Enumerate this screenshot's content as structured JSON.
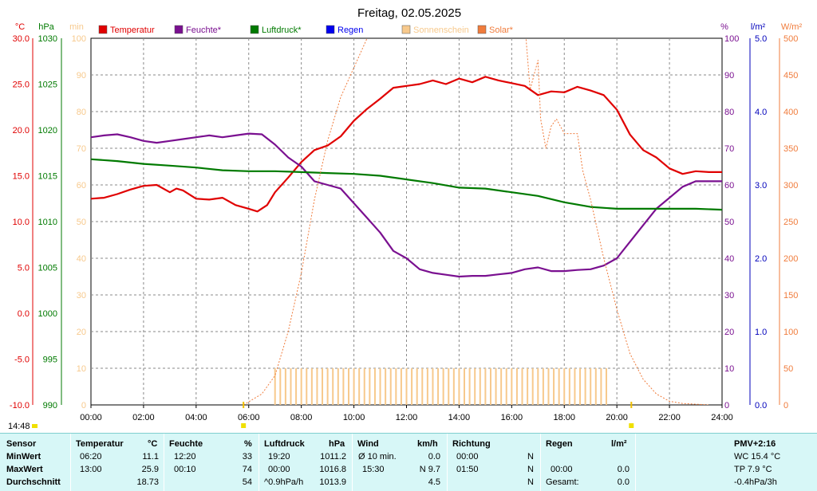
{
  "chart_data": {
    "type": "line",
    "title": "Freitag, 02.05.2025",
    "axis_units": {
      "temp": "°C",
      "pressure": "hPa",
      "sun": "min",
      "humidity": "%",
      "rain": "l/m²",
      "solar": "W/m²"
    },
    "legend": [
      {
        "name": "Temperatur",
        "color": "#e00000",
        "type": "box"
      },
      {
        "name": "Feuchte*",
        "color": "#7a1090",
        "type": "box"
      },
      {
        "name": "Luftdruck*",
        "color": "#007a00",
        "type": "box"
      },
      {
        "name": "Regen",
        "color": "#0000ee",
        "type": "box"
      },
      {
        "name": "Sonnenschein",
        "color": "#f7c98c",
        "type": "box"
      },
      {
        "name": "Solar*",
        "color": "#f07c3c",
        "type": "box"
      }
    ],
    "x_ticks": [
      "00:00",
      "02:00",
      "04:00",
      "06:00",
      "08:00",
      "10:00",
      "12:00",
      "14:00",
      "16:00",
      "18:00",
      "20:00",
      "22:00",
      "24:00"
    ],
    "x_range_hours": [
      0,
      24
    ],
    "temp_ticks": [
      "30.0",
      "25.0",
      "20.0",
      "15.0",
      "10.0",
      "5.0",
      "0.0",
      "-5.0",
      "-10.0"
    ],
    "temp_range": [
      -10,
      30
    ],
    "pressure_ticks": [
      "1030",
      "1025",
      "1020",
      "1015",
      "1010",
      "1005",
      "1000",
      "995",
      "990"
    ],
    "pressure_range": [
      990,
      1030
    ],
    "sun_ticks": [
      "100",
      "90",
      "80",
      "70",
      "60",
      "50",
      "40",
      "30",
      "20",
      "10",
      "0"
    ],
    "sun_range": [
      0,
      100
    ],
    "humidity_ticks": [
      "100",
      "90",
      "80",
      "70",
      "60",
      "50",
      "40",
      "30",
      "20",
      "10",
      "0"
    ],
    "humidity_range": [
      0,
      100
    ],
    "rain_ticks": [
      "5.0",
      "4.0",
      "3.0",
      "2.0",
      "1.0",
      "0.0"
    ],
    "rain_range": [
      0,
      5
    ],
    "solar_ticks": [
      "500",
      "450",
      "400",
      "350",
      "300",
      "250",
      "200",
      "150",
      "100",
      "50",
      "0"
    ],
    "solar_range": [
      0,
      500
    ],
    "sunrise_label": "14:48",
    "series": [
      {
        "name": "Temperatur",
        "axis": "temp",
        "color": "#e00000",
        "x": [
          0,
          0.5,
          1,
          1.5,
          2,
          2.5,
          3,
          3.25,
          3.5,
          4,
          4.5,
          5,
          5.5,
          6,
          6.33,
          6.7,
          7,
          7.5,
          8,
          8.5,
          9,
          9.5,
          10,
          10.5,
          11,
          11.5,
          12,
          12.5,
          13,
          13.5,
          14,
          14.5,
          15,
          15.5,
          16,
          16.5,
          17,
          17.5,
          18,
          18.5,
          19,
          19.5,
          20,
          20.5,
          21,
          21.5,
          22,
          22.5,
          23,
          23.5,
          24
        ],
        "y": [
          12.5,
          12.6,
          13.0,
          13.5,
          13.9,
          14.0,
          13.2,
          13.6,
          13.4,
          12.5,
          12.4,
          12.6,
          11.8,
          11.4,
          11.1,
          11.8,
          13.2,
          14.8,
          16.5,
          17.8,
          18.3,
          19.3,
          21.0,
          22.3,
          23.4,
          24.6,
          24.8,
          25.0,
          25.4,
          25.0,
          25.6,
          25.2,
          25.8,
          25.4,
          25.1,
          24.8,
          23.8,
          24.2,
          24.1,
          24.7,
          24.3,
          23.8,
          22.2,
          19.5,
          17.8,
          17.0,
          15.8,
          15.2,
          15.5,
          15.4,
          15.4
        ]
      },
      {
        "name": "Feuchte*",
        "axis": "humidity",
        "color": "#7a1090",
        "x": [
          0,
          0.5,
          1,
          1.5,
          2,
          2.5,
          3,
          3.5,
          4,
          4.5,
          5,
          5.5,
          6,
          6.5,
          7,
          7.5,
          8,
          8.5,
          9,
          9.5,
          10,
          10.5,
          11,
          11.5,
          12,
          12.5,
          13,
          13.5,
          14,
          14.5,
          15,
          15.5,
          16,
          16.5,
          17,
          17.5,
          18,
          18.5,
          19,
          19.5,
          20,
          20.5,
          21,
          21.5,
          22,
          22.5,
          23,
          23.5,
          24
        ],
        "y": [
          73,
          73.5,
          73.8,
          73,
          72,
          71.5,
          72,
          72.5,
          73,
          73.5,
          73,
          73.5,
          74,
          73.8,
          71,
          67.5,
          65,
          61,
          60,
          59,
          55,
          51,
          47,
          42,
          40,
          37,
          36,
          35.5,
          35,
          35.2,
          35.2,
          35.6,
          36,
          37,
          37.5,
          36.5,
          36.5,
          36.8,
          37,
          38,
          40,
          44.5,
          49,
          53.5,
          56.5,
          59.5,
          61,
          61,
          61
        ]
      },
      {
        "name": "Luftdruck*",
        "axis": "pressure",
        "color": "#007a00",
        "x": [
          0,
          1,
          2,
          3,
          4,
          5,
          6,
          7,
          8,
          9,
          10,
          11,
          12,
          13,
          14,
          15,
          16,
          17,
          18,
          19,
          20,
          21,
          22,
          23,
          24
        ],
        "y": [
          1016.8,
          1016.6,
          1016.3,
          1016.1,
          1015.9,
          1015.6,
          1015.5,
          1015.5,
          1015.4,
          1015.3,
          1015.2,
          1015.0,
          1014.6,
          1014.2,
          1013.7,
          1013.6,
          1013.2,
          1012.8,
          1012.1,
          1011.6,
          1011.4,
          1011.4,
          1011.4,
          1011.4,
          1011.3
        ]
      },
      {
        "name": "Solar*",
        "axis": "solar",
        "color": "#f07c3c",
        "x": [
          5.8,
          6.5,
          7,
          7.5,
          8,
          8.5,
          9,
          9.5,
          10,
          10.5,
          10.8,
          16.5,
          16.7,
          17,
          17.1,
          17.3,
          17.5,
          17.7,
          18,
          18.5,
          18.7,
          19,
          19.5,
          20,
          20.5,
          21,
          21.5,
          22,
          22.5,
          23,
          23.5
        ],
        "y": [
          0,
          15,
          40,
          100,
          180,
          280,
          360,
          420,
          460,
          500,
          520,
          520,
          430,
          470,
          390,
          350,
          380,
          390,
          370,
          370,
          320,
          280,
          200,
          130,
          70,
          35,
          15,
          5,
          2,
          1,
          0
        ]
      },
      {
        "name": "Sonnenschein",
        "axis": "sun",
        "color": "#f7c98c",
        "style": "bars",
        "x": [
          7.0,
          7.2,
          7.4,
          7.6,
          7.8,
          8.0,
          8.2,
          8.4,
          8.6,
          8.8,
          9.0,
          9.2,
          9.4,
          9.6,
          9.8,
          10.0,
          10.2,
          10.4,
          10.6,
          10.8,
          11.0,
          11.2,
          11.4,
          11.6,
          11.8,
          12.0,
          12.2,
          12.4,
          12.6,
          12.8,
          13.0,
          13.2,
          13.4,
          13.6,
          13.8,
          14.0,
          14.2,
          14.4,
          14.6,
          14.8,
          15.0,
          15.2,
          15.4,
          15.6,
          15.8,
          16.0,
          16.2,
          16.4,
          16.6,
          16.8,
          17.0,
          17.2,
          17.4,
          17.6,
          17.8,
          18.0,
          18.2,
          18.4,
          18.6,
          18.8,
          19.0,
          19.2,
          19.4,
          19.6
        ],
        "y": [
          10,
          10,
          10,
          10,
          10,
          10,
          10,
          10,
          10,
          10,
          10,
          10,
          10,
          10,
          10,
          10,
          10,
          10,
          10,
          10,
          10,
          10,
          10,
          10,
          10,
          10,
          10,
          10,
          10,
          10,
          10,
          10,
          10,
          10,
          10,
          10,
          10,
          10,
          10,
          10,
          10,
          10,
          10,
          10,
          10,
          10,
          10,
          10,
          10,
          10,
          10,
          10,
          10,
          10,
          10,
          10,
          10,
          10,
          10,
          10,
          10,
          10,
          10,
          10
        ]
      }
    ]
  },
  "stats": {
    "headers": {
      "sensor": "Sensor",
      "temperatur": "Temperatur",
      "temp_unit": "°C",
      "feuchte": "Feuchte",
      "feuchte_unit": "%",
      "luftdruck": "Luftdruck",
      "luftdruck_unit": "hPa",
      "wind": "Wind",
      "wind_unit": "km/h",
      "richtung": "Richtung",
      "regen": "Regen",
      "regen_unit": "l/m²",
      "pmv": "PMV+2:16"
    },
    "row_labels": [
      "MinWert",
      "MaxWert",
      "Durchschnitt"
    ],
    "temp_time": [
      "06:20",
      "13:00",
      ""
    ],
    "temp_val": [
      "11.1",
      "25.9",
      "18.73"
    ],
    "feuchte_time": [
      "12:20",
      "00:10",
      ""
    ],
    "feuchte_val": [
      "33",
      "74",
      "54"
    ],
    "druck_time": [
      "19:20",
      "00:00",
      "^0.9hPa/h"
    ],
    "druck_val": [
      "1011.2",
      "1016.8",
      "1013.9"
    ],
    "wind_label": [
      "Ø 10 min.",
      "15:30",
      ""
    ],
    "wind_val": [
      "0.0",
      "N 9.7",
      "4.5"
    ],
    "richtung_time": [
      "00:00",
      "01:50",
      ""
    ],
    "richtung_dir": [
      "N",
      "N",
      "N"
    ],
    "regen_label": [
      "",
      "00:00",
      "Gesamt:"
    ],
    "regen_val": [
      "",
      "0.0",
      "0.0"
    ],
    "pmv_lines": [
      "WC 15.4 °C",
      "TP 7.9 °C",
      "-0.4hPa/3h"
    ]
  }
}
